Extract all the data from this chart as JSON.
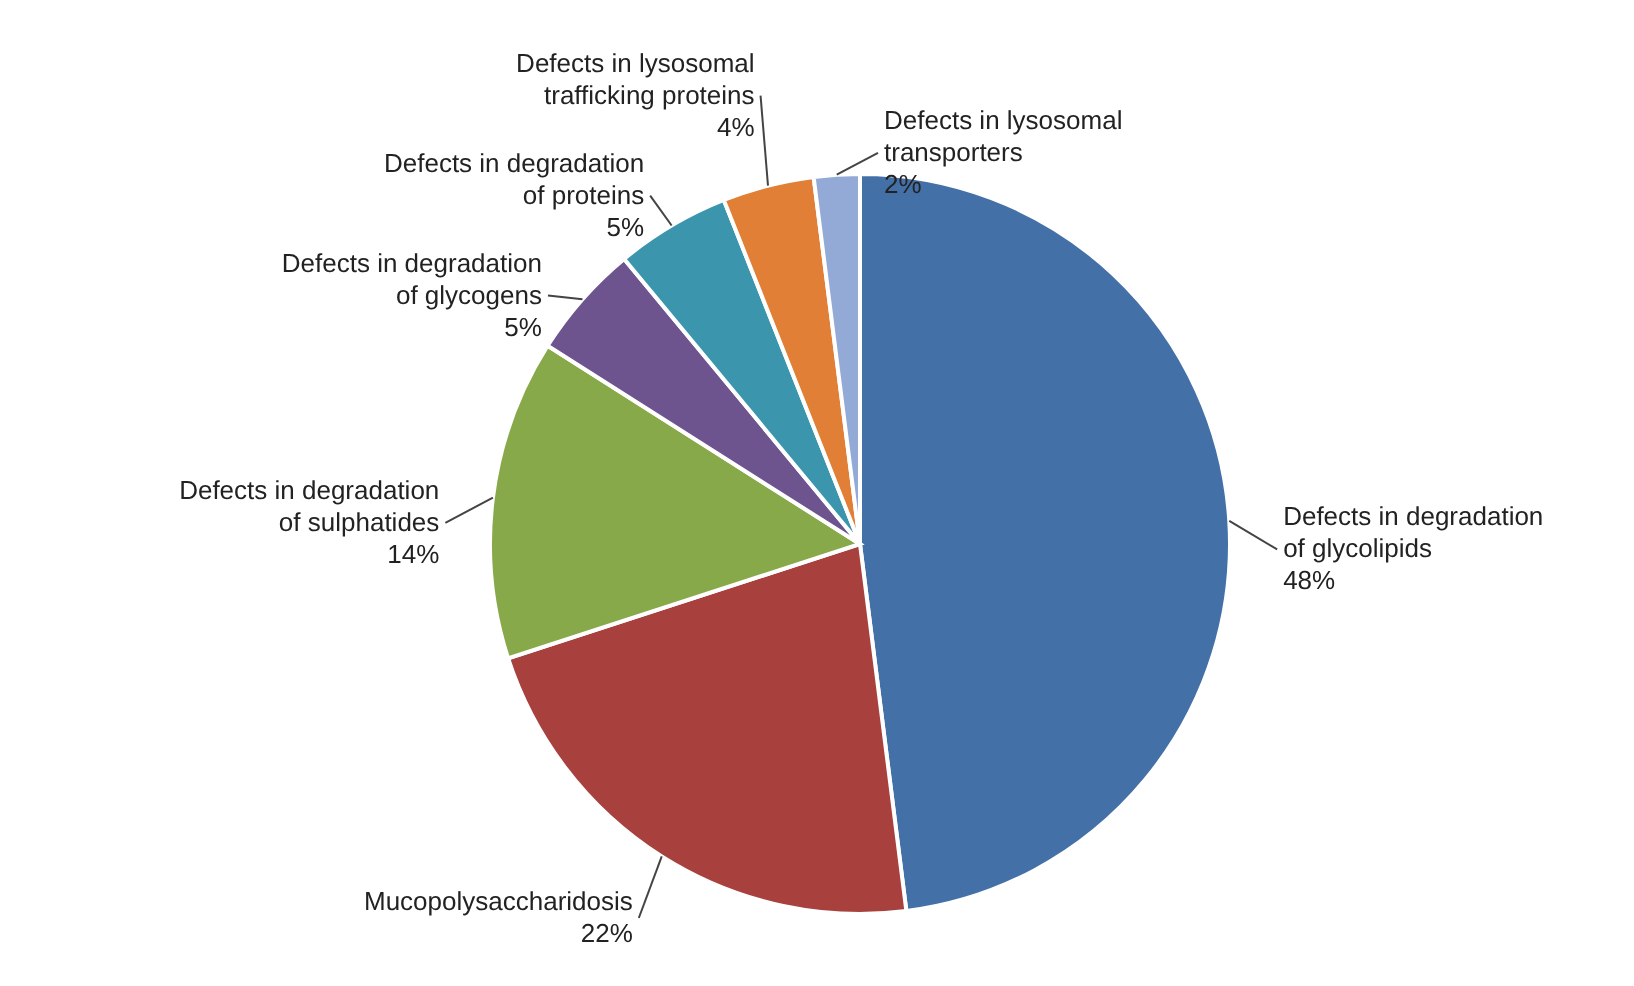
{
  "chart_data": {
    "type": "pie",
    "categories": [
      "Defects in degradation of glycolipids",
      "Mucopolysaccharidosis",
      "Defects in degradation of sulphatides",
      "Defects in degradation of glycogens",
      "Defects in degradation of proteins",
      "Defects in lysosomal trafficking proteins",
      "Defects in lysosomal transporters"
    ],
    "values": [
      48,
      22,
      14,
      5,
      5,
      4,
      2
    ],
    "value_labels": [
      "48%",
      "22%",
      "14%",
      "5%",
      "5%",
      "4%",
      "2%"
    ],
    "colors": [
      "#4470a8",
      "#a8413e",
      "#88a94a",
      "#6d548f",
      "#3a95ad",
      "#e07f35",
      "#93a9d6"
    ]
  }
}
